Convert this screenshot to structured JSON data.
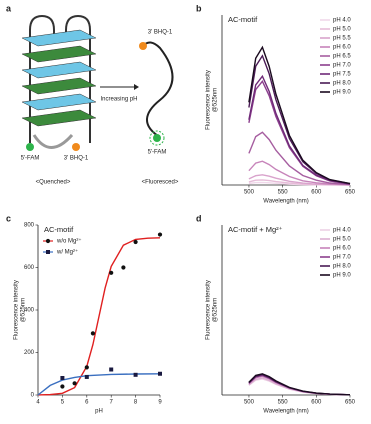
{
  "diagram": {
    "panel": "a",
    "fam_left": "5'-FAM",
    "bhq_left": "3' BHQ-1",
    "state_left": "<Quenched>",
    "arrow": "Increasing pH",
    "bhq_right": "3' BHQ-1",
    "fam_right": "5'-FAM",
    "state_right": "<Fluoresced>"
  },
  "chart_data": [
    {
      "type": "line",
      "panel": "b",
      "title": "AC-motif",
      "xlabel": "Wavelength (nm)",
      "ylabel": [
        "Fluorescence intensity",
        "@525nm"
      ],
      "x": [
        500,
        510,
        520,
        530,
        540,
        560,
        580,
        600,
        620,
        650
      ],
      "xlim": [
        460,
        650
      ],
      "xticks": [
        500,
        550,
        600,
        650
      ],
      "ylim": [
        0,
        1000
      ],
      "series": [
        {
          "name": "pH 4.0",
          "color": "#f0d8ea",
          "values": [
            9,
            14,
            15,
            13,
            10,
            5,
            3,
            1,
            1,
            0
          ]
        },
        {
          "name": "pH 5.0",
          "color": "#e6bcd8",
          "values": [
            18,
            28,
            30,
            26,
            20,
            11,
            5,
            3,
            1,
            0
          ]
        },
        {
          "name": "pH 5.5",
          "color": "#d9a3cc",
          "values": [
            36,
            55,
            60,
            52,
            40,
            22,
            11,
            5,
            2,
            1
          ]
        },
        {
          "name": "pH 6.0",
          "color": "#c784ba",
          "values": [
            84,
            129,
            140,
            120,
            92,
            50,
            25,
            13,
            6,
            1
          ]
        },
        {
          "name": "pH 6.5",
          "color": "#a65ea0",
          "values": [
            186,
            285,
            310,
            267,
            205,
            112,
            56,
            28,
            12,
            3
          ]
        },
        {
          "name": "pH 7.0",
          "color": "#8c3f8e",
          "values": [
            366,
            561,
            610,
            525,
            403,
            220,
            110,
            55,
            24,
            6
          ]
        },
        {
          "name": "pH 7.5",
          "color": "#6f2a78",
          "values": [
            384,
            589,
            640,
            550,
            422,
            230,
            115,
            58,
            26,
            6
          ]
        },
        {
          "name": "pH 8.0",
          "color": "#4a1a55",
          "values": [
            456,
            699,
            760,
            654,
            502,
            274,
            137,
            68,
            30,
            8
          ]
        },
        {
          "name": "pH 9.0",
          "color": "#1a0a1f",
          "values": [
            486,
            745,
            810,
            697,
            535,
            292,
            146,
            73,
            32,
            8
          ]
        }
      ]
    },
    {
      "type": "scatter",
      "panel": "c",
      "title": "AC-motif",
      "xlabel": "pH",
      "ylabel": [
        "Fluorescence intensity",
        "@525nm"
      ],
      "xlim": [
        4,
        9
      ],
      "xticks": [
        4,
        5,
        6,
        7,
        8,
        9
      ],
      "ylim": [
        0,
        800
      ],
      "yticks": [
        0,
        200,
        400,
        600,
        800
      ],
      "series": [
        {
          "name": "w/o Mg²⁺",
          "color": "#e02020",
          "marker_color": "#111111",
          "marker": "circle",
          "x": [
            5,
            5.5,
            6,
            6.25,
            7,
            7.5,
            8,
            9
          ],
          "values": [
            40,
            55,
            130,
            290,
            575,
            600,
            720,
            755
          ],
          "fit_x": [
            4,
            4.5,
            5,
            5.5,
            6,
            6.25,
            6.5,
            6.75,
            7,
            7.5,
            8,
            8.5,
            9
          ],
          "fit_values": [
            0.41,
            1.8,
            8,
            35,
            135,
            237,
            370,
            503,
            605,
            705,
            732,
            738,
            740
          ]
        },
        {
          "name": "w/ Mg²⁺",
          "color": "#3a6fc0",
          "marker_color": "#1a1a40",
          "marker": "square",
          "x": [
            5,
            6,
            7,
            8,
            9
          ],
          "values": [
            80,
            85,
            120,
            95,
            100
          ],
          "fit_x": [
            4,
            4.5,
            5,
            5.5,
            6,
            7,
            8,
            9
          ],
          "fit_values": [
            0,
            45,
            70,
            83,
            91,
            97,
            99,
            100
          ]
        }
      ]
    },
    {
      "type": "line",
      "panel": "d",
      "title": "AC-motif + Mg²⁺",
      "xlabel": "Wavelength (nm)",
      "ylabel": [
        "Fluorescence intensity",
        "@525nm"
      ],
      "x": [
        500,
        510,
        520,
        530,
        540,
        560,
        580,
        600,
        620,
        650
      ],
      "xlim": [
        460,
        650
      ],
      "xticks": [
        500,
        550,
        600,
        650
      ],
      "ylim": [
        0,
        1000
      ],
      "series": [
        {
          "name": "pH 4.0",
          "color": "#ecd0e4",
          "values": [
            57,
            87,
            95,
            82,
            63,
            34,
            17,
            9,
            4,
            1
          ]
        },
        {
          "name": "pH 5.0",
          "color": "#dcb0d2",
          "values": [
            60,
            92,
            100,
            86,
            66,
            36,
            18,
            9,
            4,
            1
          ]
        },
        {
          "name": "pH 6.0",
          "color": "#c784ba",
          "values": [
            66,
            101,
            110,
            95,
            73,
            40,
            20,
            10,
            4,
            1
          ]
        },
        {
          "name": "pH 7.0",
          "color": "#8c3f8e",
          "values": [
            69,
            106,
            115,
            99,
            76,
            41,
            21,
            10,
            5,
            1
          ]
        },
        {
          "name": "pH 8.0",
          "color": "#4a1a55",
          "values": [
            72,
            110,
            120,
            103,
            79,
            43,
            22,
            11,
            5,
            1
          ]
        },
        {
          "name": "pH 9.0",
          "color": "#1a0a1f",
          "values": [
            75,
            115,
            125,
            108,
            83,
            45,
            23,
            11,
            5,
            1
          ]
        }
      ]
    }
  ]
}
